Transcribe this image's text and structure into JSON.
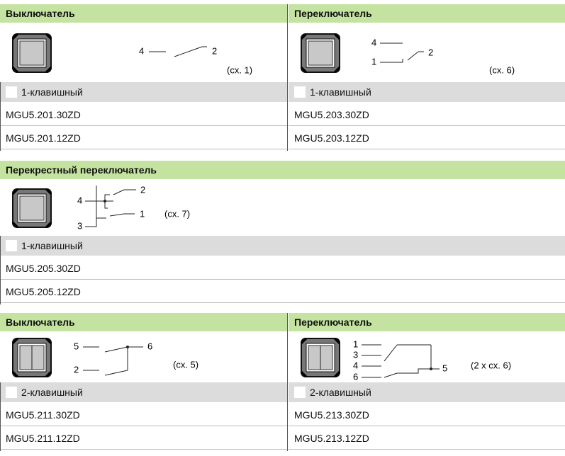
{
  "sections": [
    {
      "panels": [
        {
          "title": "Выключатель",
          "diagram": {
            "pins": [
              "4",
              "2"
            ],
            "scheme": "(сх. 1)"
          },
          "variant": "1-клавишный",
          "codes": [
            "MGU5.201.30ZD",
            "MGU5.201.12ZD"
          ]
        },
        {
          "title": "Переключатель",
          "diagram": {
            "pins": [
              "4",
              "1",
              "2"
            ],
            "scheme": "(сх. 6)"
          },
          "variant": "1-клавишный",
          "codes": [
            "MGU5.203.30ZD",
            "MGU5.203.12ZD"
          ]
        }
      ]
    },
    {
      "panels": [
        {
          "title": "Перекрестный переключатель",
          "diagram": {
            "pins": [
              "2",
              "4",
              "1",
              "3"
            ],
            "scheme": "(сх. 7)"
          },
          "variant": "1-клавишный",
          "codes": [
            "MGU5.205.30ZD",
            "MGU5.205.12ZD"
          ]
        }
      ]
    },
    {
      "panels": [
        {
          "title": "Выключатель",
          "diagram": {
            "pins": [
              "5",
              "6",
              "2"
            ],
            "scheme": "(сх. 5)"
          },
          "variant": "2-клавишный",
          "codes": [
            "MGU5.211.30ZD",
            "MGU5.211.12ZD"
          ]
        },
        {
          "title": "Переключатель",
          "diagram": {
            "pins": [
              "1",
              "3",
              "4",
              "6",
              "5"
            ],
            "scheme": "(2 x сх. 6)"
          },
          "variant": "2-клавишный",
          "codes": [
            "MGU5.213.30ZD",
            "MGU5.213.12ZD"
          ]
        }
      ]
    }
  ]
}
